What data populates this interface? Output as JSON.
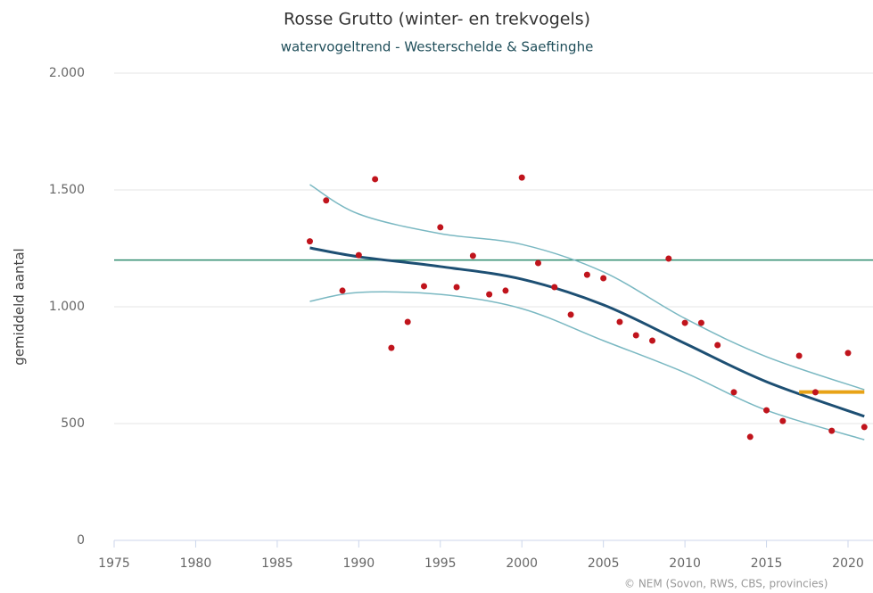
{
  "chart_data": {
    "type": "line",
    "title": "Rosse Grutto (winter- en trekvogels)",
    "subtitle": "watervogeltrend - Westerschelde & Saeftinghe",
    "y_label": "gemiddeld aantal",
    "credit": "© NEM (Sovon, RWS, CBS, provincies)",
    "xlim": [
      1975,
      2021.5
    ],
    "xticks": [
      1975,
      1980,
      1985,
      1990,
      1995,
      2000,
      2005,
      2010,
      2015,
      2020
    ],
    "ylim": [
      0,
      2000
    ],
    "yticks": [
      0,
      {
        "value": 500,
        "label": "500"
      },
      {
        "value": 1000,
        "label": "1.000"
      },
      {
        "value": 1500,
        "label": "1.500"
      },
      {
        "value": 2000,
        "label": "2.000"
      }
    ],
    "grid": true,
    "reference_line": {
      "value": 1200,
      "color": "#2e8b6e"
    },
    "series": [
      {
        "type": "line",
        "color": "#7ab8c2",
        "width": 1.5,
        "x": [
          1987,
          1990,
          1995,
          2000,
          2005,
          2010,
          2015,
          2021
        ],
        "values": [
          1523,
          1397,
          1313,
          1267,
          1149,
          950,
          786,
          645
        ]
      },
      {
        "type": "line",
        "color": "#7ab8c2",
        "width": 1.5,
        "x": [
          1987,
          1990,
          1995,
          2000,
          2005,
          2010,
          2015,
          2021
        ],
        "values": [
          1023,
          1061,
          1053,
          992,
          855,
          718,
          557,
          431
        ]
      },
      {
        "type": "line",
        "color": "#1d4f73",
        "width": 3,
        "x": [
          1987,
          1990,
          1995,
          2000,
          2005,
          2010,
          2015,
          2021
        ],
        "values": [
          1252,
          1214,
          1172,
          1118,
          1008,
          843,
          679,
          531
        ]
      },
      {
        "type": "line",
        "color": "#e8a317",
        "width": 4,
        "x": [
          2017,
          2021
        ],
        "values": [
          635,
          635
        ]
      },
      {
        "type": "scatter",
        "color": "#c0141c",
        "x": [
          1987,
          1988,
          1989,
          1990,
          1991,
          1992,
          1993,
          1994,
          1995,
          1996,
          1997,
          1998,
          1999,
          2000,
          2001,
          2002,
          2003,
          2004,
          2005,
          2006,
          2007,
          2008,
          2009,
          2010,
          2011,
          2012,
          2013,
          2014,
          2015,
          2016,
          2017,
          2018,
          2019,
          2020,
          2021
        ],
        "values": [
          1280,
          1455,
          1069,
          1221,
          1546,
          824,
          935,
          1088,
          1340,
          1084,
          1218,
          1053,
          1069,
          1553,
          1187,
          1084,
          966,
          1137,
          1122,
          935,
          878,
          855,
          1206,
          931,
          931,
          836,
          634,
          443,
          557,
          511,
          790,
          634,
          469,
          802,
          485
        ]
      }
    ]
  }
}
